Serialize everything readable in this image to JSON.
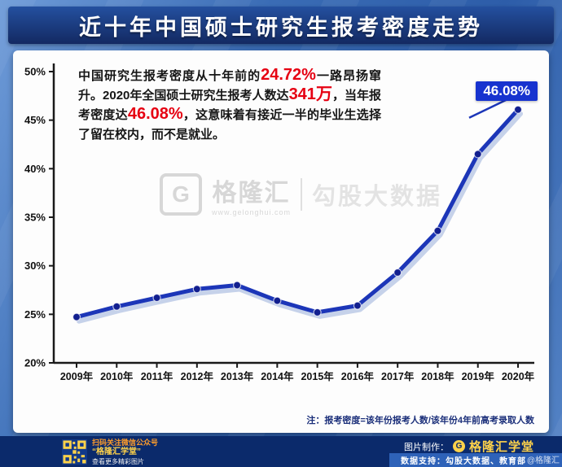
{
  "title": "近十年中国硕士研究生报考密度走势",
  "annotation": {
    "part1": "中国研究生报考密度从十年前的",
    "highlight1": "24.72%",
    "part2": "一路昂扬窜升。2020年全国硕士研究生报考人数达",
    "highlight2": "341万",
    "part3": "，当年报考密度达",
    "highlight3": "46.08%",
    "part4": "，这意味着有接近一半的毕业生选择了留在校内，而不是就业。"
  },
  "chart_data": {
    "type": "line",
    "title": "近十年中国硕士研究生报考密度走势",
    "categories": [
      "2009年",
      "2010年",
      "2011年",
      "2012年",
      "2013年",
      "2014年",
      "2015年",
      "2016年",
      "2017年",
      "2018年",
      "2019年",
      "2020年"
    ],
    "values": [
      24.72,
      25.8,
      26.7,
      27.6,
      28.0,
      26.4,
      25.2,
      25.9,
      29.3,
      33.6,
      41.5,
      46.08
    ],
    "ylim": [
      20,
      50
    ],
    "ytick_values": [
      20,
      25,
      30,
      35,
      40,
      45,
      50
    ],
    "ytick_labels": [
      "20%",
      "25%",
      "30%",
      "35%",
      "40%",
      "45%",
      "50%"
    ],
    "peak_label": "46.08%",
    "note": "注：报考密度=该年份报考人数/该年份4年前高考录取人数",
    "line_color": "#1c36b8",
    "line_shadow_color": "#8fa8d8",
    "marker_color": "#121f8f",
    "axis_color": "#1a1a1a",
    "highlight_color": "#e60012",
    "callout_bg": "#1733cf",
    "grid": false,
    "legend_position": "none"
  },
  "watermark": {
    "logo_letter": "G",
    "brand": "格隆汇",
    "brand_url": "www.gelonghui.com",
    "partner": "勾股大数据"
  },
  "footer": {
    "qr_line1": "扫码关注微信公众号",
    "qr_line2": "“格隆汇学堂”",
    "qr_line3": "查看更多精彩图片",
    "credit_label": "图片制作：",
    "credit_value": "格隆汇学堂",
    "logo_letter": "G",
    "data_support": "数据支持：勾股大数据、教育部",
    "handle": "@格隆汇"
  }
}
